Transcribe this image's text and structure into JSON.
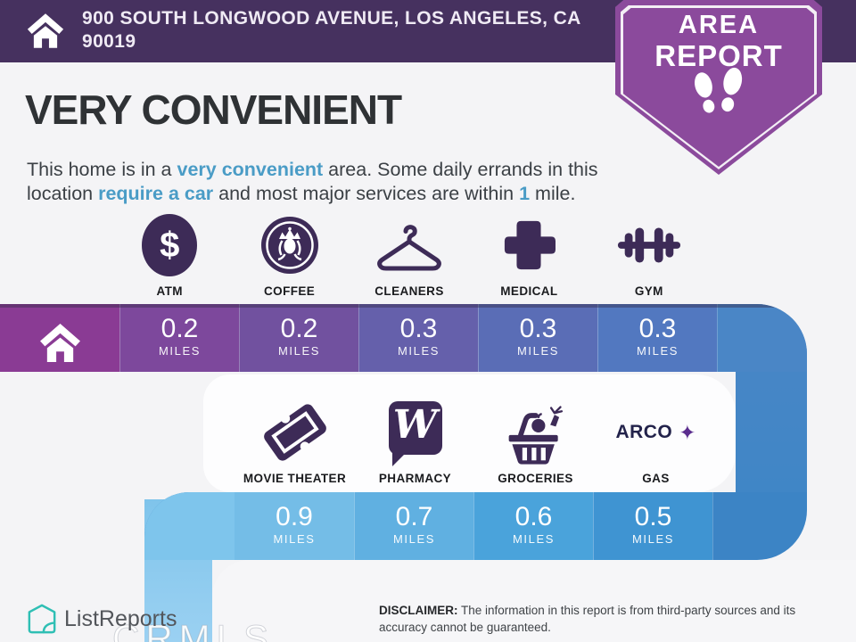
{
  "header": {
    "address_line1": "900 SOUTH LONGWOOD AVENUE, LOS ANGELES, CA",
    "address_line2": "90019"
  },
  "badge": {
    "line1": "AREA",
    "line2": "REPORT"
  },
  "main": {
    "headline": "VERY CONVENIENT",
    "description_parts": [
      {
        "t": "This home is in a "
      },
      {
        "t": "very convenient",
        "hl": true
      },
      {
        "t": " area. Some daily errands in this"
      },
      {
        "br": true
      },
      {
        "t": "location "
      },
      {
        "t": "require a car",
        "hl": true
      },
      {
        "t": " and most major services are within "
      },
      {
        "t": "1",
        "hl": true
      },
      {
        "t": " mile."
      }
    ]
  },
  "row1": {
    "places": [
      {
        "label": "ATM",
        "icon": "atm-icon",
        "symbol": "$"
      },
      {
        "label": "COFFEE",
        "icon": "coffee-icon"
      },
      {
        "label": "CLEANERS",
        "icon": "cleaners-icon"
      },
      {
        "label": "MEDICAL",
        "icon": "medical-icon"
      },
      {
        "label": "GYM",
        "icon": "gym-icon"
      }
    ],
    "distances": [
      {
        "value": "0.2",
        "unit": "MILES",
        "color": "#7d489c"
      },
      {
        "value": "0.2",
        "unit": "MILES",
        "color": "#71519f"
      },
      {
        "value": "0.3",
        "unit": "MILES",
        "color": "#6560ab"
      },
      {
        "value": "0.3",
        "unit": "MILES",
        "color": "#5a6db6"
      },
      {
        "value": "0.3",
        "unit": "MILES",
        "color": "#5278c0"
      }
    ]
  },
  "row2": {
    "places": [
      {
        "label": "MOVIE THEATER",
        "icon": "movie-ticket-icon"
      },
      {
        "label": "PHARMACY",
        "icon": "walgreens-icon",
        "monogram": "W"
      },
      {
        "label": "GROCERIES",
        "icon": "groceries-icon"
      },
      {
        "label": "GAS",
        "icon": "arco-gas-icon",
        "brand": "ARCO",
        "spark": "✦"
      }
    ],
    "distances": [
      {
        "value": "0.9",
        "unit": "MILES",
        "color": "#74bde7"
      },
      {
        "value": "0.7",
        "unit": "MILES",
        "color": "#60b0e1"
      },
      {
        "value": "0.6",
        "unit": "MILES",
        "color": "#4aa3db"
      },
      {
        "value": "0.5",
        "unit": "MILES",
        "color": "#3f94d2"
      }
    ]
  },
  "band": {
    "home_color": "#8a3b94",
    "band1_end": "#4a86c6",
    "band2_start": "#7ec5ec",
    "band2_end": "#3c84c5",
    "tail_top": "#7fc4eb",
    "tail_bottom": "#9bd1f2"
  },
  "footer": {
    "brand": "ListReports",
    "watermark": "CRMLS",
    "disclaimer_label": "DISCLAIMER:",
    "disclaimer_text": " The information in this report is from third-party sources and its accuracy cannot be guaranteed."
  },
  "colors": {
    "header_purple": "#46315f",
    "badge_purple": "#8b4a9c",
    "icon_purple": "#3d2b57",
    "highlight_blue": "#4a9cc6",
    "brand_teal": "#2fbfb4",
    "headline_dark": "#2f3235",
    "body_text": "#3b4045"
  }
}
